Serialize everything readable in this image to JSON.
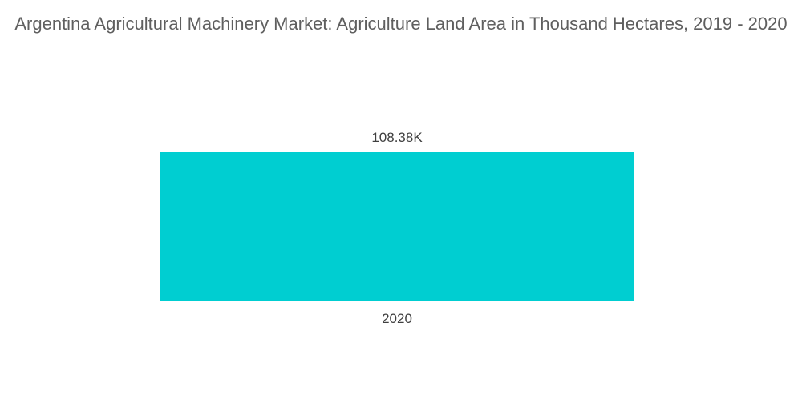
{
  "chart_data": {
    "type": "bar",
    "title": "Argentina Agricultural Machinery Market: Agriculture Land Area in Thousand Hectares, 2019 - 2020",
    "categories": [
      "2020"
    ],
    "values": [
      108.38
    ],
    "data_labels": [
      "108.38K"
    ],
    "xlabel": "",
    "ylabel": "",
    "ylim": [
      0,
      108.38
    ],
    "grid": false,
    "legend": "none",
    "bar_color": "#00ced1"
  }
}
